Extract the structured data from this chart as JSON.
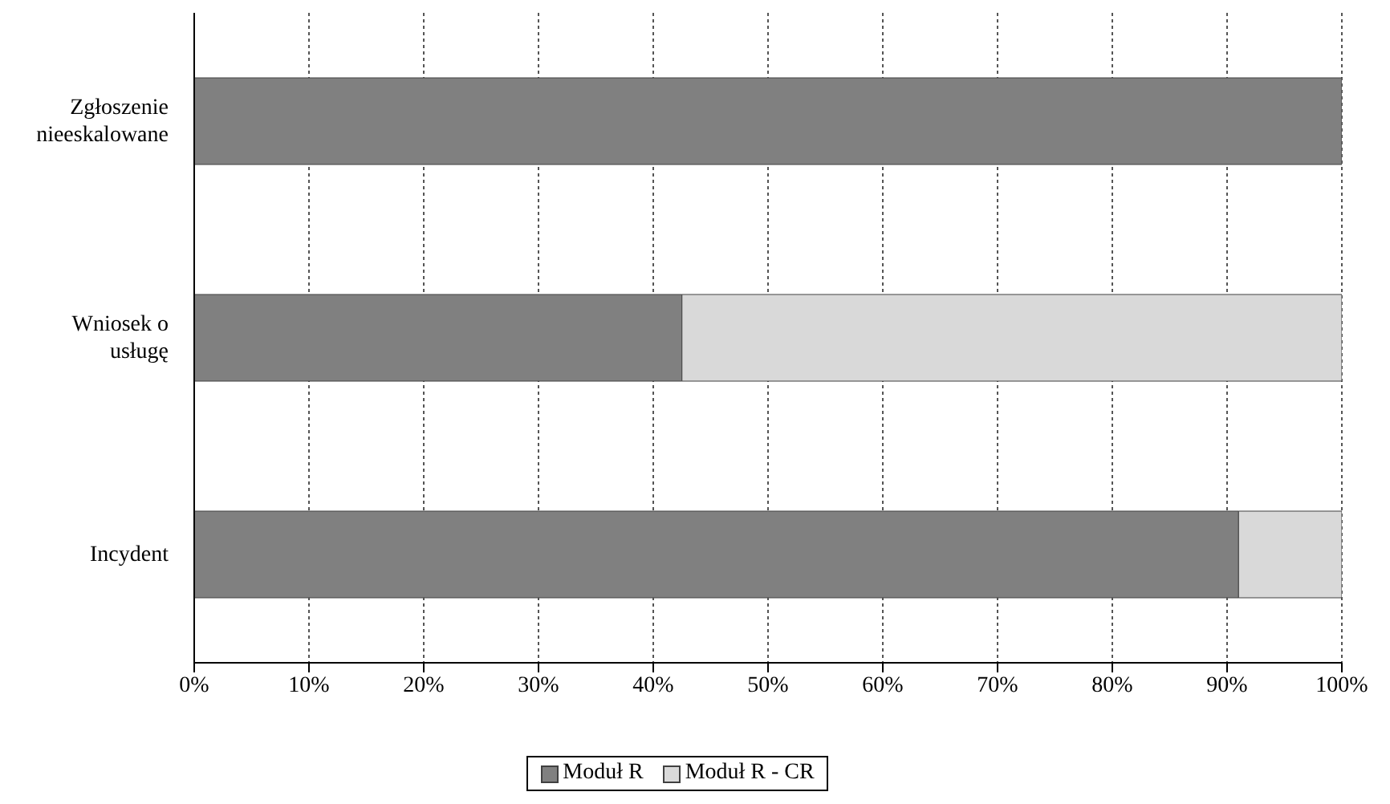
{
  "chart_data": {
    "type": "bar",
    "orientation": "horizontal",
    "stacked": true,
    "categories": [
      "Zgłoszenie nieeskalowane",
      "Wniosek o usługę",
      "Incydent"
    ],
    "series": [
      {
        "name": "Moduł R",
        "color": "#808080",
        "values": [
          100,
          42.5,
          91
        ]
      },
      {
        "name": "Moduł R - CR",
        "color": "#d9d9d9",
        "values": [
          0,
          57.5,
          9
        ]
      }
    ],
    "xlim": [
      0,
      100
    ],
    "xticks": [
      {
        "value": 0,
        "label": "0%"
      },
      {
        "value": 10,
        "label": "10%"
      },
      {
        "value": 20,
        "label": "20%"
      },
      {
        "value": 30,
        "label": "30%"
      },
      {
        "value": 40,
        "label": "40%"
      },
      {
        "value": 50,
        "label": "50%"
      },
      {
        "value": 60,
        "label": "60%"
      },
      {
        "value": 70,
        "label": "70%"
      },
      {
        "value": 80,
        "label": "80%"
      },
      {
        "value": 90,
        "label": "90%"
      },
      {
        "value": 100,
        "label": "100%"
      }
    ],
    "grid": "x",
    "legend": "bottom"
  }
}
